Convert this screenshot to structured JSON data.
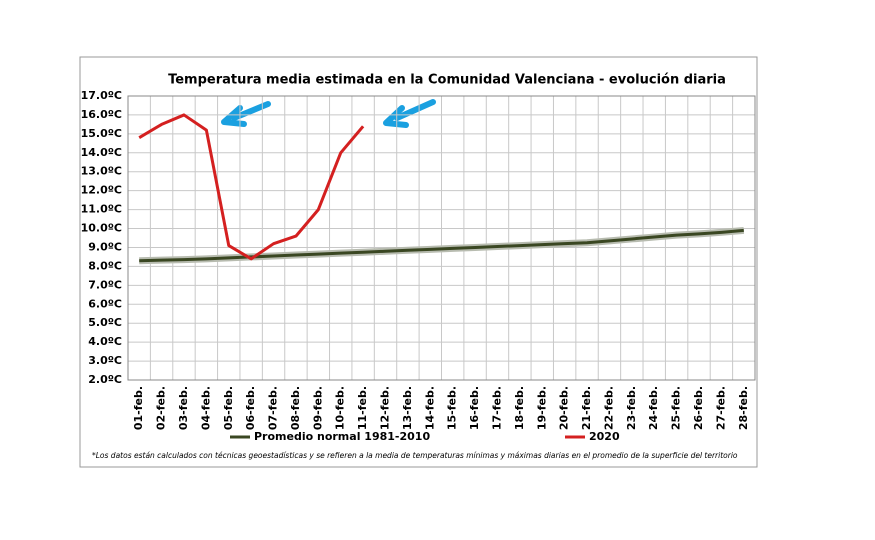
{
  "chart_data": {
    "type": "line",
    "title": "Temperatura media estimada en la Comunidad Valenciana - evolución diaria",
    "footnote": "*Los datos están calculados con técnicas geoestadísticas y se refieren a la media de temperaturas mínimas y máximas diarias en el promedio de la superficie del territorio",
    "categories": [
      "01-feb.",
      "02-feb.",
      "03-feb.",
      "04-feb.",
      "05-feb.",
      "06-feb.",
      "07-feb.",
      "08-feb.",
      "09-feb.",
      "10-feb.",
      "11-feb.",
      "12-feb.",
      "13-feb.",
      "14-feb.",
      "15-feb.",
      "16-feb.",
      "17-feb.",
      "18-feb.",
      "19-feb.",
      "20-feb.",
      "21-feb.",
      "22-feb.",
      "23-feb.",
      "24-feb.",
      "25-feb.",
      "26-feb.",
      "27-feb.",
      "28-feb."
    ],
    "series": [
      {
        "name": "Promedio normal 1981-2010",
        "color": "#3a4722",
        "values": [
          8.3,
          8.33,
          8.36,
          8.4,
          8.45,
          8.5,
          8.55,
          8.6,
          8.65,
          8.7,
          8.75,
          8.8,
          8.85,
          8.9,
          8.95,
          9.0,
          9.05,
          9.1,
          9.15,
          9.2,
          9.25,
          9.35,
          9.45,
          9.55,
          9.65,
          9.72,
          9.8,
          9.9
        ]
      },
      {
        "name": "2020",
        "color": "#d42020",
        "values": [
          14.8,
          15.5,
          16.0,
          15.2,
          9.1,
          8.4,
          9.2,
          9.6,
          11.0,
          14.0,
          15.4,
          null,
          null,
          null,
          null,
          null,
          null,
          null,
          null,
          null,
          null,
          null,
          null,
          null,
          null,
          null,
          null,
          null
        ]
      }
    ],
    "ylim": [
      2,
      17
    ],
    "yticks": [
      {
        "value": 2,
        "label": "2.0ºC"
      },
      {
        "value": 3,
        "label": "3.0ºC"
      },
      {
        "value": 4,
        "label": "4.0ºC"
      },
      {
        "value": 5,
        "label": "5.0ºC"
      },
      {
        "value": 6,
        "label": "6.0ºC"
      },
      {
        "value": 7,
        "label": "7.0ºC"
      },
      {
        "value": 8,
        "label": "8.0ºC"
      },
      {
        "value": 9,
        "label": "9.0ºC"
      },
      {
        "value": 10,
        "label": "10.0ºC"
      },
      {
        "value": 11,
        "label": "11.0ºC"
      },
      {
        "value": 12,
        "label": "12.0ºC"
      },
      {
        "value": 13,
        "label": "13.0ºC"
      },
      {
        "value": 14,
        "label": "14.0ºC"
      },
      {
        "value": 15,
        "label": "15.0ºC"
      },
      {
        "value": 16,
        "label": "16.0ºC"
      },
      {
        "value": 17,
        "label": "17.0ºC"
      }
    ],
    "grid": true
  }
}
